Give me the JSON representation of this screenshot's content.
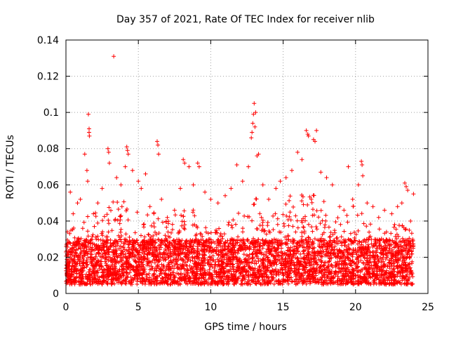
{
  "chart_data": {
    "type": "scatter",
    "title": "Day 357 of 2021, Rate Of TEC Index for receiver nlib",
    "xlabel": "GPS time / hours",
    "ylabel": "ROTI / TECUs",
    "xlim": [
      0,
      25
    ],
    "ylim": [
      0,
      0.14
    ],
    "xticks": [
      0,
      5,
      10,
      15,
      20,
      25
    ],
    "xtick_labels": [
      "0",
      "5",
      "10",
      "15",
      "20",
      "25"
    ],
    "yticks": [
      0,
      0.02,
      0.04,
      0.06,
      0.08,
      0.1,
      0.12,
      0.14
    ],
    "ytick_labels": [
      "0",
      "0.02",
      "0.04",
      "0.06",
      "0.08",
      "0.1",
      "0.12",
      "0.14"
    ],
    "grid": true,
    "marker": "plus",
    "series": [
      {
        "name": "ROTI",
        "color": "#ff0000",
        "points": [
          [
            0.1,
            0.034
          ],
          [
            0.3,
            0.056
          ],
          [
            0.5,
            0.044
          ],
          [
            0.8,
            0.05
          ],
          [
            1.0,
            0.052
          ],
          [
            1.3,
            0.077
          ],
          [
            1.45,
            0.068
          ],
          [
            1.5,
            0.062
          ],
          [
            1.55,
            0.099
          ],
          [
            1.6,
            0.091
          ],
          [
            1.6,
            0.089
          ],
          [
            1.62,
            0.087
          ],
          [
            1.9,
            0.044
          ],
          [
            2.2,
            0.05
          ],
          [
            2.5,
            0.058
          ],
          [
            2.9,
            0.08
          ],
          [
            2.95,
            0.078
          ],
          [
            3.0,
            0.072
          ],
          [
            3.3,
            0.131
          ],
          [
            3.5,
            0.064
          ],
          [
            3.8,
            0.06
          ],
          [
            4.1,
            0.07
          ],
          [
            4.2,
            0.081
          ],
          [
            4.25,
            0.079
          ],
          [
            4.3,
            0.077
          ],
          [
            4.6,
            0.068
          ],
          [
            5.0,
            0.062
          ],
          [
            5.2,
            0.058
          ],
          [
            5.5,
            0.066
          ],
          [
            5.8,
            0.048
          ],
          [
            6.3,
            0.084
          ],
          [
            6.35,
            0.082
          ],
          [
            6.4,
            0.077
          ],
          [
            6.6,
            0.052
          ],
          [
            7.0,
            0.042
          ],
          [
            7.5,
            0.046
          ],
          [
            7.9,
            0.058
          ],
          [
            8.1,
            0.074
          ],
          [
            8.2,
            0.072
          ],
          [
            8.5,
            0.07
          ],
          [
            8.8,
            0.06
          ],
          [
            9.1,
            0.072
          ],
          [
            9.2,
            0.07
          ],
          [
            9.6,
            0.056
          ],
          [
            10.0,
            0.052
          ],
          [
            10.5,
            0.05
          ],
          [
            11.0,
            0.054
          ],
          [
            11.4,
            0.058
          ],
          [
            11.8,
            0.071
          ],
          [
            12.2,
            0.062
          ],
          [
            12.6,
            0.07
          ],
          [
            12.8,
            0.086
          ],
          [
            12.85,
            0.089
          ],
          [
            12.9,
            0.094
          ],
          [
            12.95,
            0.099
          ],
          [
            13.0,
            0.105
          ],
          [
            13.05,
            0.092
          ],
          [
            13.1,
            0.1
          ],
          [
            13.2,
            0.076
          ],
          [
            13.3,
            0.077
          ],
          [
            13.6,
            0.06
          ],
          [
            14.0,
            0.052
          ],
          [
            14.5,
            0.058
          ],
          [
            14.8,
            0.062
          ],
          [
            15.2,
            0.064
          ],
          [
            15.6,
            0.068
          ],
          [
            16.0,
            0.078
          ],
          [
            16.3,
            0.074
          ],
          [
            16.6,
            0.09
          ],
          [
            16.7,
            0.088
          ],
          [
            16.75,
            0.087
          ],
          [
            17.1,
            0.085
          ],
          [
            17.2,
            0.084
          ],
          [
            17.3,
            0.09
          ],
          [
            17.6,
            0.067
          ],
          [
            18.0,
            0.064
          ],
          [
            18.4,
            0.06
          ],
          [
            18.9,
            0.048
          ],
          [
            19.2,
            0.046
          ],
          [
            19.5,
            0.07
          ],
          [
            19.8,
            0.052
          ],
          [
            20.2,
            0.06
          ],
          [
            20.4,
            0.073
          ],
          [
            20.45,
            0.071
          ],
          [
            20.5,
            0.065
          ],
          [
            20.8,
            0.05
          ],
          [
            21.2,
            0.048
          ],
          [
            21.6,
            0.042
          ],
          [
            22.0,
            0.046
          ],
          [
            22.5,
            0.044
          ],
          [
            22.9,
            0.048
          ],
          [
            23.2,
            0.05
          ],
          [
            23.4,
            0.061
          ],
          [
            23.5,
            0.059
          ],
          [
            23.6,
            0.057
          ],
          [
            23.8,
            0.04
          ],
          [
            24.0,
            0.055
          ]
        ]
      }
    ],
    "dense_band": {
      "description_note": "bulk of points forming a continuous band across the full time range",
      "x_range": [
        0,
        24
      ],
      "base_min": 0.005,
      "base_max": 0.03,
      "envelope": [
        [
          0,
          0.035
        ],
        [
          1,
          0.04
        ],
        [
          2,
          0.045
        ],
        [
          3,
          0.05
        ],
        [
          4,
          0.055
        ],
        [
          5,
          0.045
        ],
        [
          6,
          0.045
        ],
        [
          7,
          0.04
        ],
        [
          8,
          0.05
        ],
        [
          9,
          0.045
        ],
        [
          10,
          0.035
        ],
        [
          11,
          0.04
        ],
        [
          12,
          0.045
        ],
        [
          13,
          0.055
        ],
        [
          14,
          0.04
        ],
        [
          15,
          0.05
        ],
        [
          16,
          0.06
        ],
        [
          17,
          0.055
        ],
        [
          18,
          0.05
        ],
        [
          19,
          0.04
        ],
        [
          20,
          0.05
        ],
        [
          21,
          0.04
        ],
        [
          22,
          0.035
        ],
        [
          23,
          0.04
        ],
        [
          24,
          0.035
        ]
      ],
      "count": 4200
    }
  }
}
